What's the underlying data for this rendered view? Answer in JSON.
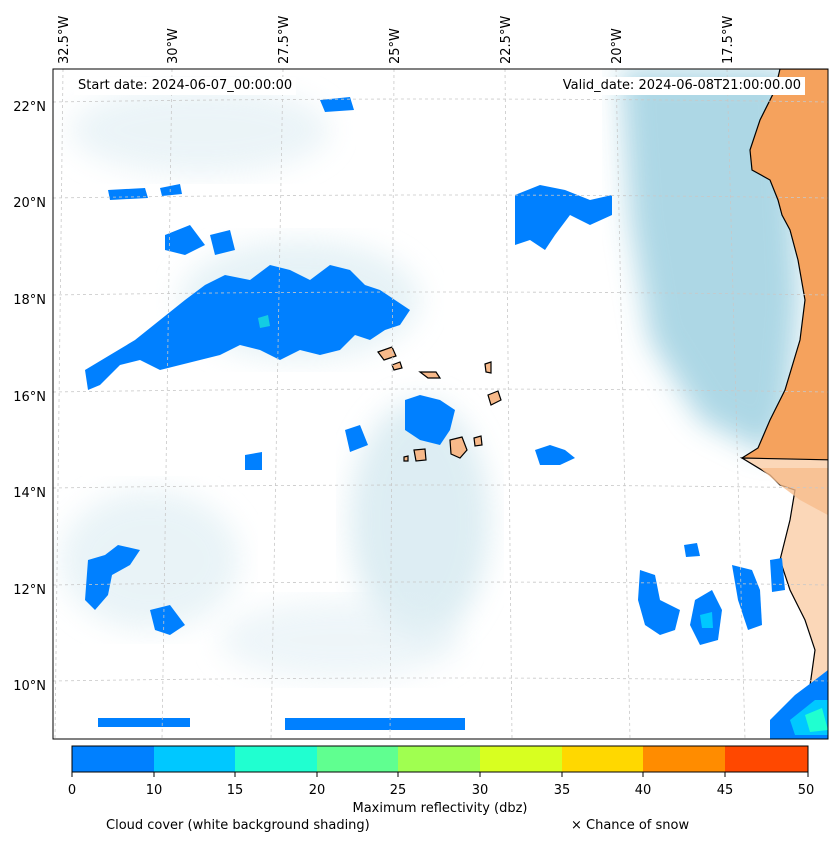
{
  "header": {
    "start_date": "Start date: 2024-06-07_00:00:00",
    "valid_date": "Valid_date: 2024-06-08T21:00:00.00"
  },
  "map": {
    "lon_labels": [
      "32.5°W",
      "30°W",
      "27.5°W",
      "25°W",
      "22.5°W",
      "20°W",
      "17.5°W"
    ],
    "lat_labels": [
      "22°N",
      "20°N",
      "18°N",
      "16°N",
      "14°N",
      "12°N",
      "10°N"
    ],
    "colors": {
      "land": "#f5a25d",
      "land_light": "#fbd7b8",
      "cloud": "#a9d5e4",
      "coast": "#000000",
      "grid": "#c8c8c8"
    }
  },
  "colorbar": {
    "ticks": [
      "0",
      "10",
      "15",
      "20",
      "25",
      "30",
      "35",
      "40",
      "45",
      "50"
    ],
    "colors": [
      "#0080ff",
      "#00c8ff",
      "#20ffd0",
      "#60ff90",
      "#a0ff50",
      "#d8ff20",
      "#ffd800",
      "#ff8c00",
      "#ff4800"
    ],
    "title": "Maximum reflectivity (dbz)"
  },
  "legend": {
    "cloud_cover": "Cloud cover (white background shading)",
    "snow": "× Chance of snow"
  }
}
